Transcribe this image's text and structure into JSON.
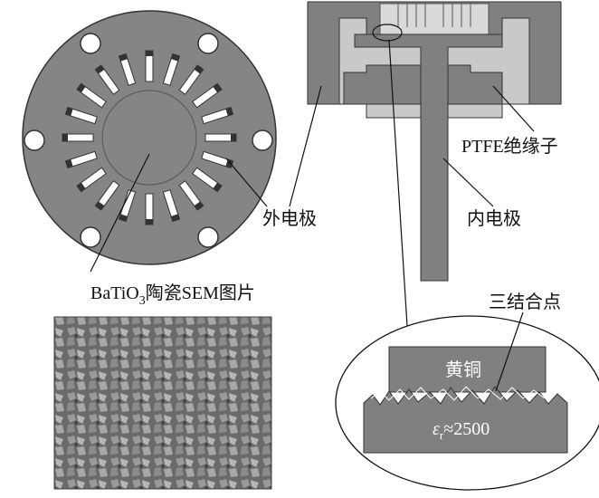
{
  "labels": {
    "ptfe": "PTFE绝缘子",
    "outer_electrode": "外电极",
    "inner_electrode": "内电极",
    "sem": {
      "main": "BaTiO",
      "sub": "3",
      "rest": "陶瓷SEM图片"
    },
    "triple_point": "三结合点",
    "brass": "黄铜",
    "permittivity": {
      "symbol": "ε",
      "sub": "r",
      "rest": "≈2500"
    }
  }
}
